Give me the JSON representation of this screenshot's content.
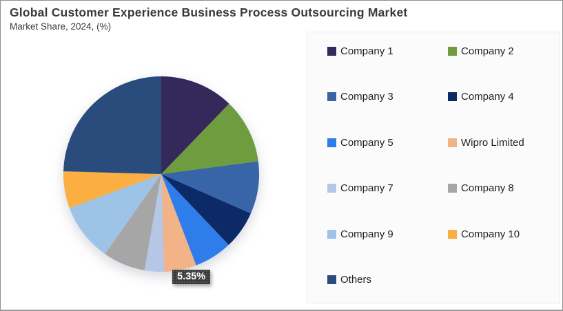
{
  "header": {
    "title": "Global Customer Experience Business Process Outsourcing Market",
    "subtitle": "Market Share, 2024, (%)"
  },
  "chart_data": {
    "type": "pie",
    "title": "Global Customer Experience Business Process Outsourcing Market",
    "subtitle": "Market Share, 2024, (%)",
    "start_angle": "12 o'clock, clockwise",
    "legend_position": "right",
    "legend_columns": 2,
    "data_label": {
      "text": "5.35%",
      "slice": "Wipro Limited"
    },
    "slices": [
      {
        "label": "Company 1",
        "value": 12.2,
        "color": "#35285B"
      },
      {
        "label": "Company 2",
        "value": 10.7,
        "color": "#6F9C3F"
      },
      {
        "label": "Company 3",
        "value": 8.7,
        "color": "#3765A8"
      },
      {
        "label": "Company 4",
        "value": 6.3,
        "color": "#0B2A66"
      },
      {
        "label": "Company 5",
        "value": 6.3,
        "color": "#2F7CEB"
      },
      {
        "label": "Wipro Limited",
        "value": 5.35,
        "color": "#F2B389"
      },
      {
        "label": "Company 7",
        "value": 3.2,
        "color": "#B4C7E7"
      },
      {
        "label": "Company 8",
        "value": 7.0,
        "color": "#A6A6A6"
      },
      {
        "label": "Company 9",
        "value": 9.6,
        "color": "#9DC3E6"
      },
      {
        "label": "Company 10",
        "value": 6.1,
        "color": "#FBAE42"
      },
      {
        "label": "Others",
        "value": 24.55,
        "color": "#2A4C7C"
      }
    ]
  }
}
